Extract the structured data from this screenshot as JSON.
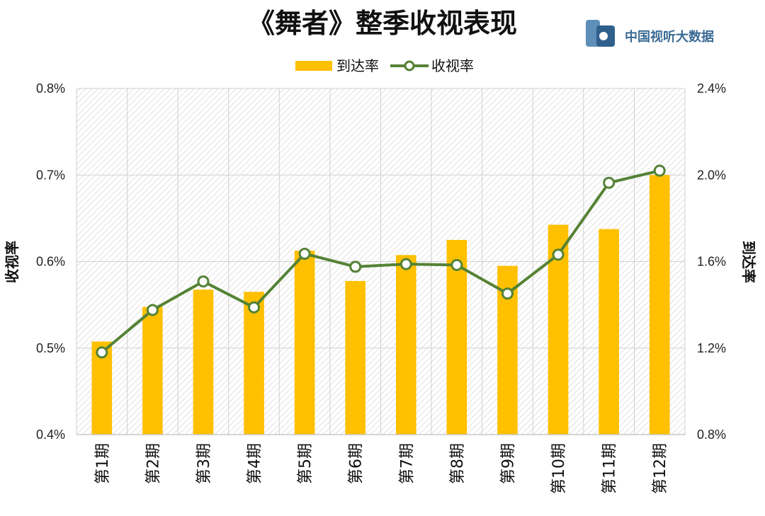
{
  "chart_data": {
    "type": "bar",
    "title": "《舞者》整季收视表现",
    "categories": [
      "第1期",
      "第2期",
      "第3期",
      "第4期",
      "第5期",
      "第6期",
      "第7期",
      "第8期",
      "第9期",
      "第10期",
      "第11期",
      "第12期"
    ],
    "series": [
      {
        "name": "到达率",
        "type": "bar",
        "axis": "right",
        "color": "#FFC000",
        "values": [
          1.23,
          1.39,
          1.47,
          1.46,
          1.65,
          1.51,
          1.63,
          1.7,
          1.58,
          1.77,
          1.75,
          2.0
        ]
      },
      {
        "name": "收视率",
        "type": "line",
        "axis": "left",
        "color": "#548235",
        "marker_fill": "#ffffff",
        "values": [
          0.495,
          0.544,
          0.577,
          0.547,
          0.609,
          0.594,
          0.597,
          0.596,
          0.563,
          0.608,
          0.691,
          0.705
        ]
      }
    ],
    "ylabel": "收视率",
    "y2label": "到达率",
    "ylim": [
      0.4,
      0.8
    ],
    "y2lim": [
      0.8,
      2.4
    ],
    "yticks": [
      "0.4%",
      "0.5%",
      "0.6%",
      "0.7%",
      "0.8%"
    ],
    "y2ticks": [
      "0.8%",
      "1.2%",
      "1.6%",
      "2.0%",
      "2.4%"
    ],
    "legend_position": "top",
    "grid": true,
    "plot_background": "hatched"
  },
  "logo": {
    "text": "中国视听大数据",
    "icon": "cvb-logo-icon"
  }
}
